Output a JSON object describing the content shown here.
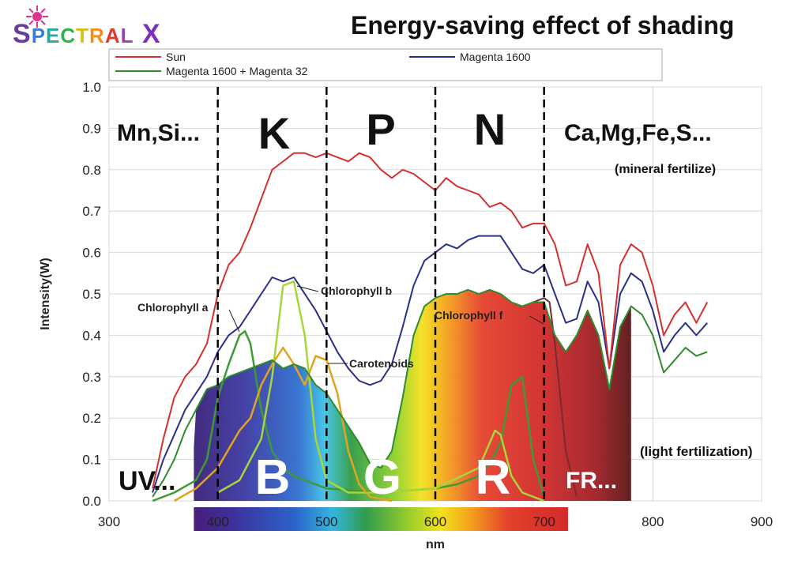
{
  "logo": {
    "text": "SPECTRAL X",
    "letters": [
      "S",
      "P",
      "E",
      "C",
      "T",
      "R",
      "A",
      "L",
      " ",
      "X"
    ],
    "colors": [
      "#6a3d9a",
      "#3b7dd8",
      "#2ca7a0",
      "#2db34a",
      "#d4c21a",
      "#f28e1c",
      "#e2372d",
      "#9b3fb5",
      "#ffffff",
      "#7b2fbe"
    ]
  },
  "chart_data": {
    "type": "line",
    "title": "Energy-saving effect of shading",
    "xlabel": "nm",
    "ylabel": "Intensity(W)",
    "xlim": [
      300,
      900
    ],
    "ylim": [
      0.0,
      1.0
    ],
    "xticks": [
      "300",
      "400",
      "500",
      "600",
      "700",
      "800",
      "900"
    ],
    "yticks": [
      "0.0",
      "0.1",
      "0.2",
      "0.3",
      "0.4",
      "0.5",
      "0.6",
      "0.7",
      "0.8",
      "0.9",
      "1.0"
    ],
    "legend": {
      "position": "top",
      "entries": [
        "Sun",
        "Magenta 1600",
        "Magenta 1600 + Magenta 32"
      ]
    },
    "series": [
      {
        "name": "Sun",
        "color": "#d62f2f",
        "x": [
          340,
          350,
          360,
          370,
          380,
          390,
          400,
          410,
          420,
          430,
          440,
          450,
          460,
          470,
          480,
          490,
          500,
          510,
          520,
          530,
          540,
          550,
          560,
          570,
          580,
          590,
          600,
          610,
          620,
          630,
          640,
          650,
          660,
          670,
          680,
          690,
          700,
          710,
          720,
          730,
          740,
          750,
          760,
          770,
          780,
          790,
          800,
          810,
          820,
          830,
          840,
          850
        ],
        "y": [
          0.03,
          0.15,
          0.25,
          0.3,
          0.33,
          0.38,
          0.5,
          0.57,
          0.6,
          0.66,
          0.73,
          0.8,
          0.82,
          0.84,
          0.84,
          0.83,
          0.84,
          0.83,
          0.82,
          0.84,
          0.83,
          0.8,
          0.78,
          0.8,
          0.79,
          0.77,
          0.75,
          0.78,
          0.76,
          0.75,
          0.74,
          0.71,
          0.72,
          0.7,
          0.66,
          0.67,
          0.67,
          0.62,
          0.52,
          0.53,
          0.62,
          0.55,
          0.32,
          0.57,
          0.62,
          0.6,
          0.52,
          0.4,
          0.45,
          0.48,
          0.43,
          0.48
        ]
      },
      {
        "name": "Magenta 1600",
        "color": "#2a2f8a",
        "x": [
          340,
          350,
          360,
          370,
          380,
          390,
          400,
          410,
          420,
          430,
          440,
          450,
          460,
          470,
          480,
          490,
          500,
          510,
          520,
          530,
          540,
          550,
          560,
          570,
          580,
          590,
          600,
          610,
          620,
          630,
          640,
          650,
          660,
          670,
          680,
          690,
          700,
          710,
          720,
          730,
          740,
          750,
          760,
          770,
          780,
          790,
          800,
          810,
          820,
          830,
          840,
          850
        ],
        "y": [
          0.02,
          0.1,
          0.16,
          0.22,
          0.26,
          0.3,
          0.36,
          0.4,
          0.42,
          0.46,
          0.5,
          0.54,
          0.53,
          0.54,
          0.5,
          0.46,
          0.41,
          0.36,
          0.32,
          0.29,
          0.28,
          0.29,
          0.33,
          0.42,
          0.52,
          0.58,
          0.6,
          0.62,
          0.61,
          0.63,
          0.64,
          0.64,
          0.64,
          0.6,
          0.56,
          0.55,
          0.57,
          0.5,
          0.43,
          0.44,
          0.53,
          0.48,
          0.32,
          0.5,
          0.55,
          0.53,
          0.46,
          0.36,
          0.4,
          0.43,
          0.4,
          0.43
        ]
      },
      {
        "name": "Magenta 1600 + Magenta 32",
        "color": "#2e8b2e",
        "x": [
          340,
          350,
          360,
          370,
          380,
          390,
          400,
          410,
          420,
          430,
          440,
          450,
          460,
          470,
          480,
          490,
          500,
          510,
          520,
          530,
          540,
          550,
          560,
          570,
          580,
          590,
          600,
          610,
          620,
          630,
          640,
          650,
          660,
          670,
          680,
          690,
          700,
          710,
          720,
          730,
          740,
          750,
          760,
          770,
          780,
          790,
          800,
          810,
          820,
          830,
          840,
          850
        ],
        "y": [
          0.01,
          0.05,
          0.1,
          0.17,
          0.22,
          0.27,
          0.28,
          0.3,
          0.31,
          0.32,
          0.33,
          0.34,
          0.32,
          0.33,
          0.32,
          0.28,
          0.26,
          0.22,
          0.18,
          0.14,
          0.09,
          0.08,
          0.12,
          0.25,
          0.4,
          0.47,
          0.49,
          0.5,
          0.5,
          0.51,
          0.5,
          0.51,
          0.5,
          0.48,
          0.47,
          0.48,
          0.48,
          0.4,
          0.36,
          0.4,
          0.46,
          0.4,
          0.27,
          0.42,
          0.47,
          0.45,
          0.4,
          0.31,
          0.34,
          0.37,
          0.35,
          0.36
        ]
      },
      {
        "name": "Chlorophyll a",
        "color": "#3f9a36",
        "x": [
          340,
          360,
          380,
          390,
          400,
          410,
          420,
          425,
          430,
          440,
          450,
          460,
          470,
          480,
          500,
          550,
          600,
          620,
          640,
          650,
          660,
          670,
          680,
          690,
          700
        ],
        "y": [
          0.0,
          0.02,
          0.05,
          0.1,
          0.25,
          0.33,
          0.4,
          0.41,
          0.38,
          0.22,
          0.12,
          0.08,
          0.06,
          0.05,
          0.03,
          0.02,
          0.03,
          0.04,
          0.06,
          0.09,
          0.14,
          0.28,
          0.3,
          0.1,
          0.01
        ]
      },
      {
        "name": "Chlorophyll b",
        "color": "#a8d63a",
        "x": [
          400,
          420,
          440,
          450,
          460,
          470,
          480,
          490,
          500,
          520,
          550,
          600,
          640,
          650,
          655,
          660,
          670,
          680,
          700
        ],
        "y": [
          0.02,
          0.05,
          0.15,
          0.3,
          0.52,
          0.53,
          0.4,
          0.15,
          0.05,
          0.02,
          0.02,
          0.03,
          0.08,
          0.14,
          0.17,
          0.16,
          0.06,
          0.02,
          0.0
        ]
      },
      {
        "name": "Carotenoids",
        "color": "#e2a41f",
        "x": [
          360,
          380,
          400,
          420,
          430,
          440,
          450,
          460,
          470,
          480,
          490,
          500,
          510,
          520,
          530,
          540,
          560
        ],
        "y": [
          0.0,
          0.03,
          0.08,
          0.17,
          0.2,
          0.28,
          0.33,
          0.37,
          0.33,
          0.28,
          0.35,
          0.34,
          0.26,
          0.12,
          0.04,
          0.01,
          0.0
        ]
      },
      {
        "name": "Chlorophyll f",
        "color": "#7a2b2b",
        "x": [
          690,
          700,
          705,
          710,
          720,
          730
        ],
        "y": [
          0.48,
          0.49,
          0.48,
          0.38,
          0.12,
          0.01
        ]
      }
    ],
    "annotations": {
      "pigments": [
        "Chlorophyll a",
        "Chlorophyll b",
        "Carotenoids",
        "Chlorophyll f"
      ],
      "nutrient_zones": [
        "Mn,Si...",
        "K",
        "P",
        "N",
        "Ca,Mg,Fe,S..."
      ],
      "mineral_note": "(mineral fertilize)",
      "light_note": "(light fertilization)",
      "bands": [
        "UV...",
        "B",
        "G",
        "R",
        "FR..."
      ],
      "dividers_nm": [
        400,
        500,
        600,
        700
      ]
    }
  }
}
